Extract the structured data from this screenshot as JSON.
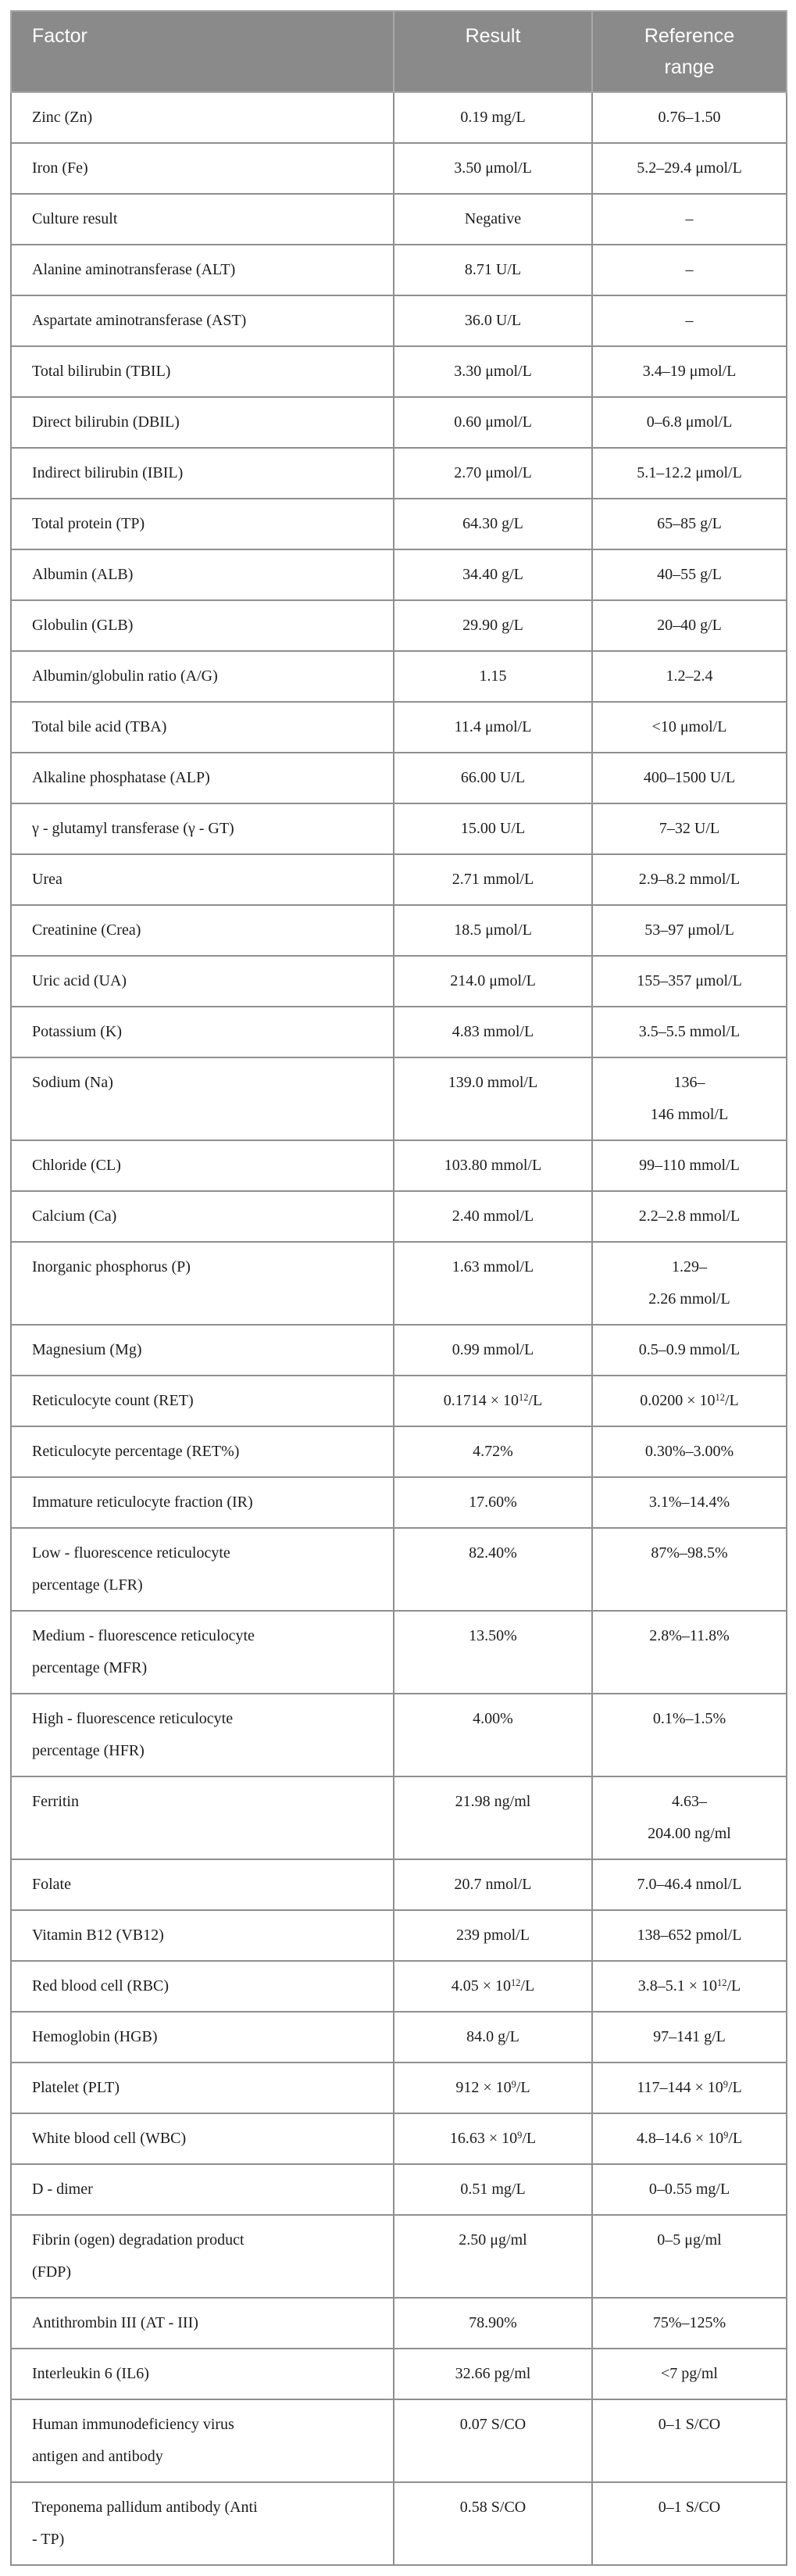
{
  "colors": {
    "header_bg": "#8a8a8a",
    "header_text": "#ffffff",
    "header_border": "#a8a8a8",
    "body_border": "#8f8f8f",
    "outer_border": "#7a7a7a",
    "body_text": "#1c1c1c",
    "page_bg": "#ffffff"
  },
  "table": {
    "header": {
      "factor": "Factor",
      "result": "Result",
      "range": "Reference\nrange"
    },
    "rows": [
      {
        "factor": "Zinc (Zn)",
        "result": "0.19 mg/L",
        "range": "0.76–1.50"
      },
      {
        "factor": "Iron (Fe)",
        "result": "3.50 μmol/L",
        "range": "5.2–29.4 μmol/L"
      },
      {
        "factor": "Culture result",
        "result": "Negative",
        "range": "–"
      },
      {
        "factor": "Alanine aminotransferase (ALT)",
        "result": "8.71 U/L",
        "range": "–"
      },
      {
        "factor": "Aspartate aminotransferase (AST)",
        "result": "36.0 U/L",
        "range": "–"
      },
      {
        "factor": "Total bilirubin (TBIL)",
        "result": "3.30 μmol/L",
        "range": "3.4–19 μmol/L"
      },
      {
        "factor": "Direct bilirubin (DBIL)",
        "result": "0.60 μmol/L",
        "range": "0–6.8 μmol/L"
      },
      {
        "factor": "Indirect bilirubin (IBIL)",
        "result": "2.70 μmol/L",
        "range": "5.1–12.2 μmol/L"
      },
      {
        "factor": "Total protein (TP)",
        "result": "64.30 g/L",
        "range": "65–85 g/L"
      },
      {
        "factor": "Albumin (ALB)",
        "result": "34.40 g/L",
        "range": "40–55 g/L"
      },
      {
        "factor": "Globulin (GLB)",
        "result": "29.90 g/L",
        "range": "20–40 g/L"
      },
      {
        "factor": "Albumin/globulin ratio (A/G)",
        "result": "1.15",
        "range": "1.2–2.4"
      },
      {
        "factor": "Total bile acid (TBA)",
        "result": "11.4 μmol/L",
        "range": "<10 μmol/L"
      },
      {
        "factor": "Alkaline phosphatase (ALP)",
        "result": "66.00 U/L",
        "range": "400–1500 U/L"
      },
      {
        "factor": "γ - glutamyl transferase (γ - GT)",
        "result": "15.00 U/L",
        "range": "7–32 U/L"
      },
      {
        "factor": "Urea",
        "result": "2.71 mmol/L",
        "range": "2.9–8.2 mmol/L"
      },
      {
        "factor": "Creatinine (Crea)",
        "result": "18.5 μmol/L",
        "range": "53–97 μmol/L"
      },
      {
        "factor": "Uric acid (UA)",
        "result": "214.0 μmol/L",
        "range": "155–357 μmol/L"
      },
      {
        "factor": "Potassium (K)",
        "result": "4.83 mmol/L",
        "range": "3.5–5.5 mmol/L"
      },
      {
        "factor": "Sodium (Na)",
        "result": "139.0 mmol/L",
        "range": "136–\n146 mmol/L"
      },
      {
        "factor": "Chloride (CL)",
        "result": "103.80 mmol/L",
        "range": "99–110 mmol/L"
      },
      {
        "factor": "Calcium (Ca)",
        "result": "2.40 mmol/L",
        "range": "2.2–2.8 mmol/L"
      },
      {
        "factor": "Inorganic phosphorus (P)",
        "result": "1.63 mmol/L",
        "range": "1.29–\n2.26 mmol/L"
      },
      {
        "factor": "Magnesium (Mg)",
        "result": "0.99 mmol/L",
        "range": "0.5–0.9 mmol/L"
      },
      {
        "factor": "Reticulocyte count (RET)",
        "result": "0.1714 × 10^{12}/L",
        "range": "0.0200 × 10^{12}/L"
      },
      {
        "factor": "Reticulocyte percentage (RET%)",
        "result": "4.72%",
        "range": "0.30%–3.00%"
      },
      {
        "factor": "Immature reticulocyte fraction (IR)",
        "result": "17.60%",
        "range": "3.1%–14.4%"
      },
      {
        "factor": "Low - fluorescence reticulocyte\npercentage (LFR)",
        "result": "82.40%",
        "range": "87%–98.5%"
      },
      {
        "factor": "Medium - fluorescence reticulocyte\npercentage (MFR)",
        "result": "13.50%",
        "range": "2.8%–11.8%"
      },
      {
        "factor": "High - fluorescence reticulocyte\npercentage (HFR)",
        "result": "4.00%",
        "range": "0.1%–1.5%"
      },
      {
        "factor": "Ferritin",
        "result": "21.98 ng/ml",
        "range": "4.63–\n204.00 ng/ml"
      },
      {
        "factor": "Folate",
        "result": "20.7 nmol/L",
        "range": "7.0–46.4 nmol/L"
      },
      {
        "factor": "Vitamin B12 (VB12)",
        "result": "239 pmol/L",
        "range": "138–652 pmol/L"
      },
      {
        "factor": "Red blood cell (RBC)",
        "result": "4.05 × 10^{12}/L",
        "range": "3.8–5.1 × 10^{12}/L"
      },
      {
        "factor": "Hemoglobin (HGB)",
        "result": "84.0 g/L",
        "range": "97–141 g/L"
      },
      {
        "factor": "Platelet (PLT)",
        "result": "912 × 10^{9}/L",
        "range": "117–144 × 10^{9}/L"
      },
      {
        "factor": "White blood cell (WBC)",
        "result": "16.63 × 10^{9}/L",
        "range": "4.8–14.6 × 10^{9}/L"
      },
      {
        "factor": "D - dimer",
        "result": "0.51 mg/L",
        "range": "0–0.55 mg/L"
      },
      {
        "factor": "Fibrin (ogen) degradation product\n(FDP)",
        "result": "2.50 μg/ml",
        "range": "0–5 μg/ml"
      },
      {
        "factor": "Antithrombin III (AT - III)",
        "result": "78.90%",
        "range": "75%–125%"
      },
      {
        "factor": "Interleukin 6 (IL6)",
        "result": "32.66 pg/ml",
        "range": "<7 pg/ml"
      },
      {
        "factor": "Human immunodeficiency virus\nantigen and antibody",
        "result": "0.07 S/CO",
        "range": "0–1 S/CO"
      },
      {
        "factor": "Treponema pallidum antibody (Anti\n- TP)",
        "result": "0.58 S/CO",
        "range": "0–1 S/CO"
      }
    ]
  }
}
